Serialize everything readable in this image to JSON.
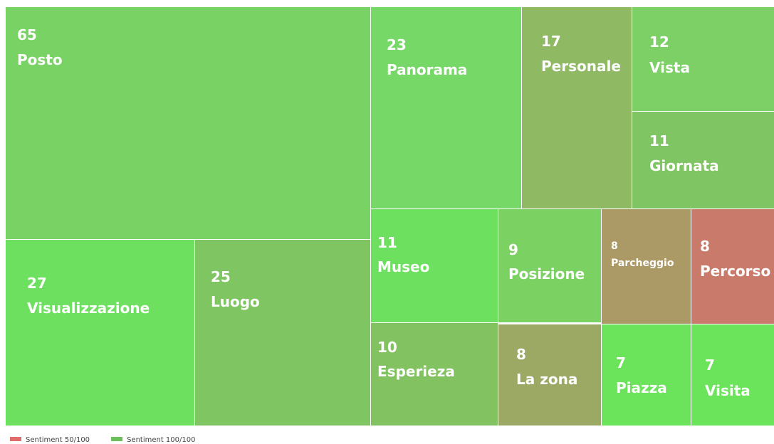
{
  "chart_data": {
    "type": "treemap",
    "categories": [
      "Posto",
      "Visualizzazione",
      "Luogo",
      "Panorama",
      "Personale",
      "Vista",
      "Giornata",
      "Museo",
      "Posizione",
      "Parcheggio",
      "Percorso",
      "Esperieza",
      "La zona",
      "Piazza",
      "Visita"
    ],
    "values": [
      65,
      27,
      25,
      23,
      17,
      12,
      11,
      11,
      9,
      8,
      8,
      10,
      8,
      7,
      7
    ],
    "colors": [
      "#79d364",
      "#6ee05f",
      "#7fc662",
      "#76d867",
      "#8fb963",
      "#7dd066",
      "#80c563",
      "#6ee05f",
      "#7bd162",
      "#ac9a66",
      "#c97a6a",
      "#82c261",
      "#9ba965",
      "#6be35b",
      "#6be35b"
    ],
    "legend": [
      {
        "name": "Sentiment 50/100",
        "color": "#e06b6b"
      },
      {
        "name": "Sentiment 100/100",
        "color": "#6cc05c"
      }
    ]
  }
}
